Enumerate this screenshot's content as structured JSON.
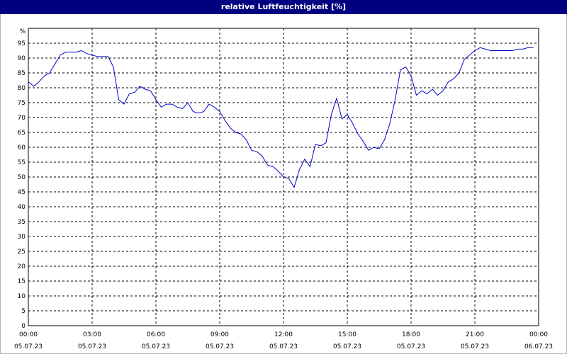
{
  "chart_data": {
    "type": "line",
    "title": "relative Luftfeuchtigkeit [%]",
    "ylabel_unit": "%",
    "ylim": [
      0,
      100
    ],
    "y_ticks": [
      0,
      5,
      10,
      15,
      20,
      25,
      30,
      35,
      40,
      45,
      50,
      55,
      60,
      65,
      70,
      75,
      80,
      85,
      90,
      95
    ],
    "xlim_hours": [
      0,
      24
    ],
    "x_ticks": [
      {
        "h": 0,
        "time": "00:00",
        "date": "05.07.23"
      },
      {
        "h": 3,
        "time": "03:00",
        "date": "05.07.23"
      },
      {
        "h": 6,
        "time": "06:00",
        "date": "05.07.23"
      },
      {
        "h": 9,
        "time": "09:00",
        "date": "05.07.23"
      },
      {
        "h": 12,
        "time": "12:00",
        "date": "05.07.23"
      },
      {
        "h": 15,
        "time": "15:00",
        "date": "05.07.23"
      },
      {
        "h": 18,
        "time": "18:00",
        "date": "05.07.23"
      },
      {
        "h": 21,
        "time": "21:00",
        "date": "05.07.23"
      },
      {
        "h": 24,
        "time": "00:00",
        "date": "06.07.23"
      }
    ],
    "grid": true,
    "line_color": "#0000cc",
    "series": [
      {
        "x": [
          0,
          0.25,
          0.5,
          0.75,
          1,
          1.25,
          1.5,
          1.75,
          2,
          2.25,
          2.5,
          2.75,
          3,
          3.25,
          3.5,
          3.75,
          4,
          4.25,
          4.5,
          4.75,
          5,
          5.25,
          5.5,
          5.75,
          6,
          6.25,
          6.5,
          6.75,
          7,
          7.25,
          7.5,
          7.75,
          8,
          8.25,
          8.5,
          8.75,
          9,
          9.25,
          9.5,
          9.75,
          10,
          10.25,
          10.5,
          10.75,
          11,
          11.25,
          11.5,
          11.75,
          12,
          12.25,
          12.5,
          12.75,
          13,
          13.25,
          13.5,
          13.75,
          14,
          14.25,
          14.5,
          14.75,
          15,
          15.25,
          15.5,
          15.75,
          16,
          16.25,
          16.5,
          16.75,
          17,
          17.25,
          17.5,
          17.75,
          18,
          18.25,
          18.5,
          18.75,
          19,
          19.25,
          19.5,
          19.75,
          20,
          20.25,
          20.5,
          20.75,
          21,
          21.25,
          21.5,
          21.75,
          22,
          22.25,
          22.5,
          22.75,
          23,
          23.25,
          23.5,
          23.75
        ],
        "values": [
          82,
          80.5,
          82,
          84,
          85,
          88,
          91,
          92,
          92,
          92,
          92.5,
          91.5,
          91,
          90.5,
          90.5,
          90.5,
          87,
          76,
          74.5,
          78,
          78.5,
          80.5,
          79.5,
          79,
          76,
          73.5,
          74.5,
          74.5,
          73.5,
          73,
          75,
          72,
          71.5,
          72,
          74.5,
          73.5,
          72,
          69,
          66.5,
          65,
          64.5,
          62.5,
          59,
          58.5,
          57,
          54,
          53.5,
          52,
          50,
          49.5,
          46.5,
          52.5,
          56,
          53.5,
          61,
          60.5,
          61.5,
          71,
          76.5,
          69.5,
          71,
          68,
          64.5,
          62,
          59,
          60,
          59.5,
          62.5,
          68,
          76,
          86,
          87,
          84,
          77.5,
          79,
          78,
          79.5,
          77.5,
          79,
          82,
          83,
          85,
          89.5,
          91,
          92.5,
          93.5,
          93,
          92.5,
          92.5,
          92.5,
          92.5,
          92.5,
          93,
          93,
          93.5,
          93.5
        ]
      }
    ]
  }
}
